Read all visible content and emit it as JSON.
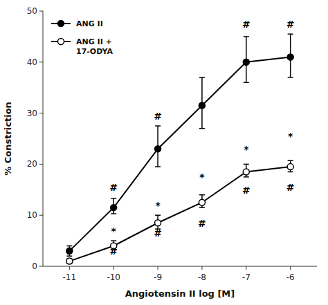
{
  "chart_data": {
    "type": "line",
    "xlabel": "Angiotensin II log [M]",
    "ylabel": "% Constriction",
    "x": [
      -11,
      -10,
      -9,
      -8,
      -7,
      -6
    ],
    "xlim": [
      -11.6,
      -5.4
    ],
    "xticks": [
      -11,
      -10,
      -9,
      -8,
      -7,
      -6
    ],
    "ylim": [
      0,
      50
    ],
    "yticks": [
      0,
      10,
      20,
      30,
      40,
      50
    ],
    "grid": false,
    "legend": "upper left",
    "series": [
      {
        "name": "ANG II",
        "color": "#000000",
        "marker": "circle",
        "values": [
          3.0,
          11.5,
          23.0,
          31.5,
          40.0,
          41.0
        ],
        "error_lower": [
          1.0,
          1.2,
          3.5,
          4.5,
          4.0,
          4.0
        ],
        "error_upper": [
          1.0,
          1.8,
          4.5,
          5.5,
          5.0,
          4.5
        ]
      },
      {
        "name": "ANG II +\n17-ODYA",
        "color": "#000000",
        "marker": "open-circle",
        "values": [
          1.0,
          4.0,
          8.5,
          12.5,
          18.5,
          19.5
        ],
        "error_lower": [
          0.5,
          0.8,
          1.2,
          1.0,
          1.0,
          1.0
        ],
        "error_upper": [
          0.5,
          1.0,
          1.5,
          1.5,
          1.5,
          1.2
        ]
      }
    ],
    "annotations": [
      {
        "x": -10,
        "y": 14.5,
        "text": "#"
      },
      {
        "x": -9,
        "y": 28.5,
        "text": "#"
      },
      {
        "x": -7,
        "y": 46.5,
        "text": "#"
      },
      {
        "x": -6,
        "y": 46.5,
        "text": "#"
      },
      {
        "x": -11,
        "y": 2.0,
        "text": "#"
      },
      {
        "x": -10,
        "y": 2.0,
        "text": "#"
      },
      {
        "x": -9,
        "y": 5.5,
        "text": "#"
      },
      {
        "x": -8,
        "y": 7.5,
        "text": "#"
      },
      {
        "x": -7,
        "y": 14.0,
        "text": "#"
      },
      {
        "x": -6,
        "y": 14.5,
        "text": "#"
      },
      {
        "x": -10,
        "y": 6.0,
        "text": "*"
      },
      {
        "x": -9,
        "y": 11.0,
        "text": "*"
      },
      {
        "x": -8,
        "y": 16.5,
        "text": "*"
      },
      {
        "x": -7,
        "y": 22.0,
        "text": "*"
      },
      {
        "x": -6,
        "y": 24.5,
        "text": "*"
      }
    ]
  }
}
